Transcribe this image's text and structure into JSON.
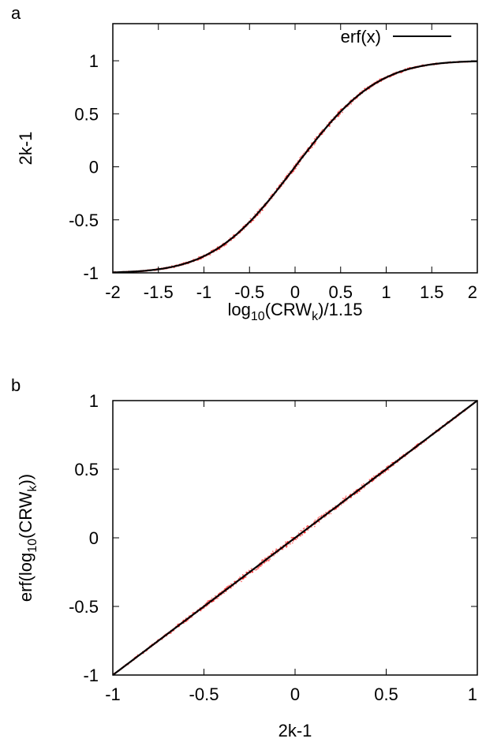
{
  "colors": {
    "data_points": "#ff0000",
    "fit_line": "#000000",
    "frame": "#000000"
  },
  "chart_data": [
    {
      "panel_label": "a",
      "type": "scatter",
      "xlabel": "log10(CRWk)/1.15",
      "ylabel": "2k-1",
      "xlim": [
        -2,
        2
      ],
      "ylim": [
        -1,
        1.35
      ],
      "x_ticks": [
        "-2",
        "-1.5",
        "-1",
        "-0.5",
        "0",
        "0.5",
        "1",
        "1.5",
        "2"
      ],
      "y_ticks": [
        "-1",
        "-0.5",
        "0",
        "0.5",
        "1"
      ],
      "grid": false,
      "legend": {
        "position": "top-right",
        "entries": [
          {
            "label": "erf(x)",
            "style": "black-line"
          }
        ]
      },
      "series": [
        {
          "style": "red-scatter",
          "x": [
            -2.0,
            -1.75,
            -1.5,
            -1.25,
            -1.0,
            -0.75,
            -0.5,
            -0.25,
            0.0,
            0.25,
            0.5,
            0.75,
            1.0,
            1.25,
            1.5,
            1.75,
            2.0
          ],
          "y": [
            -0.995,
            -0.987,
            -0.966,
            -0.923,
            -0.843,
            -0.711,
            -0.52,
            -0.276,
            0.0,
            0.276,
            0.52,
            0.711,
            0.843,
            0.923,
            0.966,
            0.987,
            0.995
          ]
        },
        {
          "name": "erf(x)",
          "style": "black-line",
          "x": [
            -2.0,
            -1.75,
            -1.5,
            -1.25,
            -1.0,
            -0.75,
            -0.5,
            -0.25,
            0.0,
            0.25,
            0.5,
            0.75,
            1.0,
            1.25,
            1.5,
            1.75,
            2.0
          ],
          "y": [
            -0.995,
            -0.987,
            -0.966,
            -0.923,
            -0.843,
            -0.711,
            -0.52,
            -0.276,
            0.0,
            0.276,
            0.52,
            0.711,
            0.843,
            0.923,
            0.966,
            0.987,
            0.995
          ]
        }
      ]
    },
    {
      "panel_label": "b",
      "type": "scatter",
      "xlabel": "2k-1",
      "ylabel": "erf(log10(CRWk))",
      "xlim": [
        -1,
        1
      ],
      "ylim": [
        -1,
        1
      ],
      "x_ticks": [
        "-1",
        "-0.5",
        "0",
        "0.5",
        "1"
      ],
      "y_ticks": [
        "-1",
        "-0.5",
        "0",
        "0.5",
        "1"
      ],
      "grid": false,
      "series": [
        {
          "style": "red-scatter",
          "x": [
            -1.0,
            -0.75,
            -0.5,
            -0.25,
            0.0,
            0.25,
            0.5,
            0.75,
            1.0
          ],
          "y": [
            -1.0,
            -0.75,
            -0.5,
            -0.25,
            0.0,
            0.25,
            0.5,
            0.75,
            1.0
          ]
        },
        {
          "style": "black-line",
          "x": [
            -1.0,
            1.0
          ],
          "y": [
            -1.0,
            1.0
          ]
        }
      ]
    }
  ]
}
